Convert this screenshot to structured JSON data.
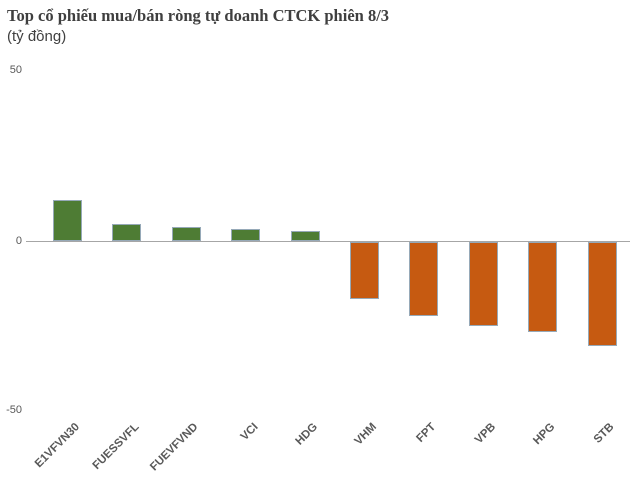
{
  "header": {
    "title": "Top cổ phiếu mua/bán ròng tự doanh CTCK phiên 8/3",
    "subtitle": "(tỷ đồng)"
  },
  "axis": {
    "ytick_labels": [
      "50",
      "0",
      "-50"
    ]
  },
  "colors": {
    "positive": "#4e7c34",
    "negative": "#c65a11",
    "bar_border": "#96a9b8",
    "axis_line": "#a6a6a6",
    "label_text": "#595959",
    "title_text": "#3f3f3f",
    "subtitle_text": "#404040",
    "background": "#ffffff"
  },
  "chart_data": {
    "type": "bar",
    "title": "Top cổ phiếu mua/bán ròng tự doanh CTCK phiên 8/3",
    "subtitle": "(tỷ đồng)",
    "ylabel": "tỷ đồng",
    "xlabel": "",
    "categories": [
      "E1VFVN30",
      "FUESSVFL",
      "FUEVFVND",
      "VCI",
      "HDG",
      "VHM",
      "FPT",
      "VPB",
      "HPG",
      "STB"
    ],
    "values": [
      12.2,
      4.9,
      4.1,
      3.5,
      2.9,
      -16.9,
      -21.9,
      -24.8,
      -26.6,
      -30.7
    ],
    "series_note": "positive bars = net buy (green), negative bars = net sell (orange)",
    "ylim": [
      -50,
      50
    ],
    "yticks": [
      50,
      0,
      -50
    ],
    "grid": false,
    "legend": false
  }
}
